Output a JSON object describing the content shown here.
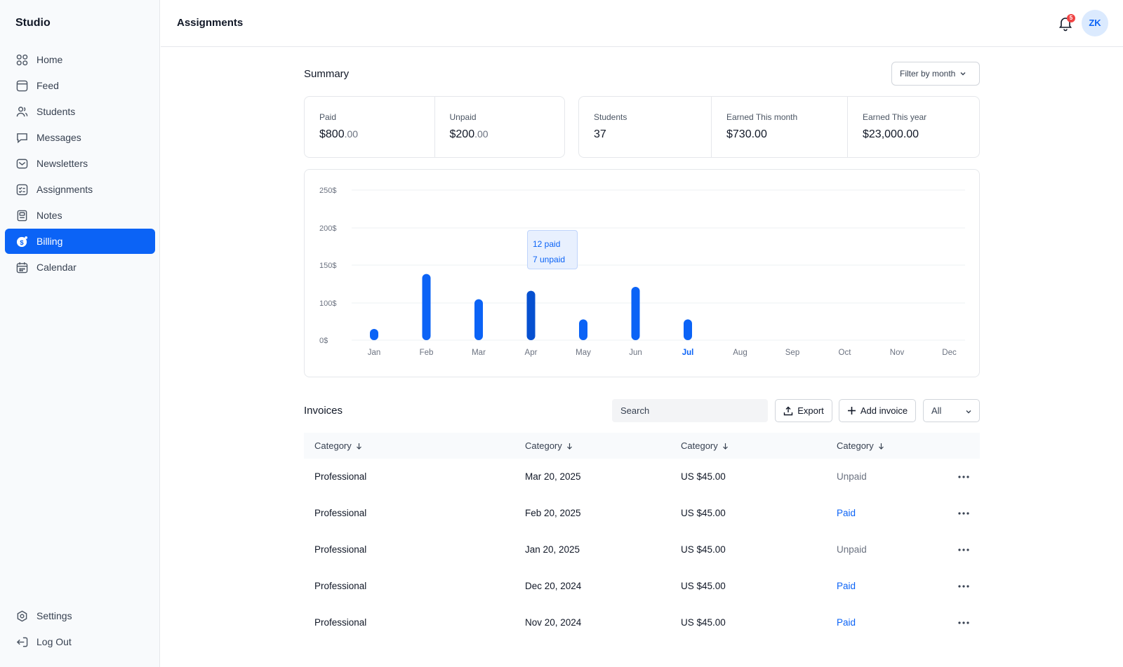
{
  "app": {
    "brand": "Studio",
    "page_title": "Assignments"
  },
  "sidebar": {
    "items": [
      {
        "label": "Home",
        "icon": "grid-icon"
      },
      {
        "label": "Feed",
        "icon": "feed-icon"
      },
      {
        "label": "Students",
        "icon": "users-icon"
      },
      {
        "label": "Messages",
        "icon": "message-icon"
      },
      {
        "label": "Newsletters",
        "icon": "mail-icon"
      },
      {
        "label": "Assignments",
        "icon": "checklist-icon"
      },
      {
        "label": "Notes",
        "icon": "note-icon"
      },
      {
        "label": "Billing",
        "icon": "dollar-icon",
        "active": true
      },
      {
        "label": "Calendar",
        "icon": "calendar-icon"
      }
    ],
    "bottom": [
      {
        "label": "Settings",
        "icon": "settings-icon"
      },
      {
        "label": "Log Out",
        "icon": "logout-icon"
      }
    ]
  },
  "header": {
    "notification_count": "5",
    "avatar_initials": "ZK"
  },
  "summary": {
    "title": "Summary",
    "filter_label": "Filter by month",
    "paid": {
      "label": "Paid",
      "value": "$800",
      "cents": ".00"
    },
    "unpaid": {
      "label": "Unpaid",
      "value": "$200",
      "cents": ".00"
    },
    "students": {
      "label": "Students",
      "value": "37"
    },
    "earned_month": {
      "label": "Earned This month",
      "value": "$730.00"
    },
    "earned_year": {
      "label": "Earned This year",
      "value": "$23,000.00"
    }
  },
  "chart_data": {
    "type": "bar",
    "categories": [
      "Jan",
      "Feb",
      "Mar",
      "Apr",
      "May",
      "Jun",
      "Jul",
      "Aug",
      "Sep",
      "Oct",
      "Nov",
      "Dec"
    ],
    "values": [
      20,
      118,
      73,
      88,
      37,
      95,
      37,
      null,
      null,
      null,
      null,
      null
    ],
    "y_ticks": [
      "250$",
      "200$",
      "150$",
      "100$",
      "0$"
    ],
    "ylim": [
      0,
      200
    ],
    "highlight_month": "Jul",
    "tooltip": {
      "month": "Apr",
      "line1": "12 paid",
      "line2": "7 unpaid"
    },
    "colors": {
      "bar": "#0b63f6",
      "bar_active": "#0650d0",
      "grid": "#eef0f3"
    }
  },
  "invoices": {
    "title": "Invoices",
    "search_placeholder": "Search",
    "export_label": "Export",
    "add_label": "Add invoice",
    "status_filter": "All",
    "columns": [
      "Category",
      "Category",
      "Category",
      "Category"
    ],
    "rows": [
      {
        "category": "Professional",
        "date": "Mar 20, 2025",
        "amount": "US $45.00",
        "status": "Unpaid"
      },
      {
        "category": "Professional",
        "date": "Feb 20, 2025",
        "amount": "US $45.00",
        "status": "Paid"
      },
      {
        "category": "Professional",
        "date": "Jan 20, 2025",
        "amount": "US $45.00",
        "status": "Unpaid"
      },
      {
        "category": "Professional",
        "date": "Dec 20, 2024",
        "amount": "US $45.00",
        "status": "Paid"
      },
      {
        "category": "Professional",
        "date": "Nov 20, 2024",
        "amount": "US $45.00",
        "status": "Paid"
      }
    ]
  }
}
